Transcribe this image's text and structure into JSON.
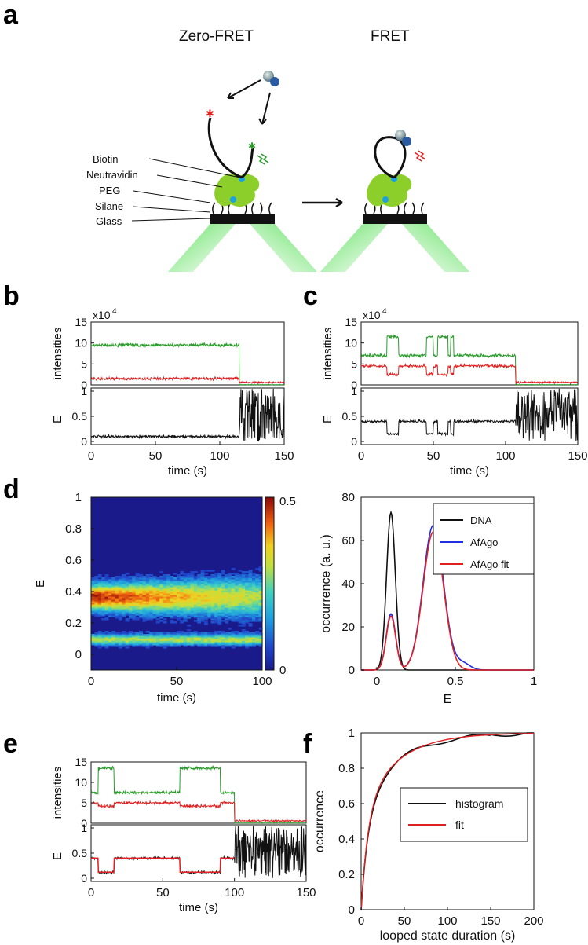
{
  "panels": {
    "a": "a",
    "b": "b",
    "c": "c",
    "d": "d",
    "e": "e",
    "f": "f"
  },
  "schematic": {
    "title_left": "Zero-FRET",
    "title_right": "FRET",
    "labels": [
      "Biotin",
      "Neutravidin",
      "PEG",
      "Silane",
      "Glass"
    ]
  },
  "axes": {
    "intensities": "intensities",
    "E": "E",
    "time": "time (s)",
    "x1e4": "x10",
    "x1e4_exp": "4",
    "occurrence_au": "occurrence (a. u.)",
    "occurrence": "occurrence",
    "looped": "looped state duration (s)"
  },
  "colors": {
    "donor": "#2a9a2a",
    "acceptor": "#e02020",
    "fret": "#111111",
    "fit": "#e02020",
    "afago": "#1f2ee0"
  },
  "chart_data": [
    {
      "id": "b",
      "type": "line",
      "xlim": [
        0,
        150
      ],
      "ylim_top": [
        0,
        15
      ],
      "ylim_bottom": [
        0,
        1
      ],
      "yticks_top": [
        "0",
        "5",
        "10",
        "15"
      ],
      "yticks_bottom": [
        "0",
        "0.5",
        "1"
      ],
      "xticks": [
        "0",
        "50",
        "100",
        "150"
      ],
      "series": [
        {
          "values_desc": "donor ~9.5 until 115 s then 0"
        },
        {
          "values_desc": "acceptor ~1.5"
        },
        {
          "values_desc": "E ~0.1 until 115 s then noise"
        }
      ]
    },
    {
      "id": "c",
      "type": "line",
      "xlim": [
        0,
        150
      ],
      "ylim_top": [
        0,
        15
      ],
      "ylim_bottom": [
        0,
        1
      ],
      "yticks_top": [
        "0",
        "5",
        "10",
        "15"
      ],
      "yticks_bottom": [
        "0",
        "0.5",
        "1"
      ],
      "xticks": [
        "0",
        "50",
        "100",
        "150"
      ]
    },
    {
      "id": "d_heat",
      "type": "heatmap",
      "xlim": [
        0,
        100
      ],
      "ylim": [
        -0.1,
        1
      ],
      "xticks": [
        "0",
        "50",
        "100"
      ],
      "yticks": [
        "0",
        "0.2",
        "0.4",
        "0.6",
        "0.8",
        "1"
      ],
      "colorbar": [
        "0",
        "0.5"
      ],
      "bands": [
        {
          "E": 0.36,
          "strength": 1
        },
        {
          "E": 0.09,
          "strength": 0.6
        }
      ]
    },
    {
      "id": "d_hist",
      "type": "line",
      "xlim": [
        -0.1,
        1
      ],
      "ylim": [
        0,
        80
      ],
      "xticks": [
        "0",
        "0.5",
        "1"
      ],
      "yticks": [
        "0",
        "20",
        "40",
        "60",
        "80"
      ],
      "legend_position": "top-right",
      "series": [
        {
          "name": "DNA",
          "peaks": [
            {
              "mu": 0.09,
              "amp": 73,
              "sd": 0.028
            }
          ]
        },
        {
          "name": "AfAgo",
          "peaks": [
            {
              "mu": 0.09,
              "amp": 26,
              "sd": 0.03
            },
            {
              "mu": 0.36,
              "amp": 67,
              "sd": 0.065
            }
          ]
        },
        {
          "name": "AfAgo fit",
          "peaks": [
            {
              "mu": 0.09,
              "amp": 25,
              "sd": 0.03
            },
            {
              "mu": 0.36,
              "amp": 64,
              "sd": 0.065
            }
          ]
        }
      ]
    },
    {
      "id": "e",
      "type": "line",
      "xlim": [
        0,
        150
      ],
      "ylim_top": [
        0,
        15
      ],
      "ylim_bottom": [
        0,
        1
      ],
      "yticks_top": [
        "0",
        "5",
        "10",
        "15"
      ],
      "yticks_bottom": [
        "0",
        "0.5",
        "1"
      ],
      "xticks": [
        "0",
        "50",
        "100",
        "150"
      ]
    },
    {
      "id": "f",
      "type": "line",
      "xlim": [
        0,
        200
      ],
      "ylim": [
        0,
        1
      ],
      "xticks": [
        "0",
        "50",
        "100",
        "150",
        "200"
      ],
      "yticks": [
        "0",
        "0.2",
        "0.4",
        "0.6",
        "0.8",
        "1"
      ],
      "legend_position": "middle-right",
      "series": [
        {
          "name": "histogram"
        },
        {
          "name": "fit"
        }
      ]
    }
  ]
}
